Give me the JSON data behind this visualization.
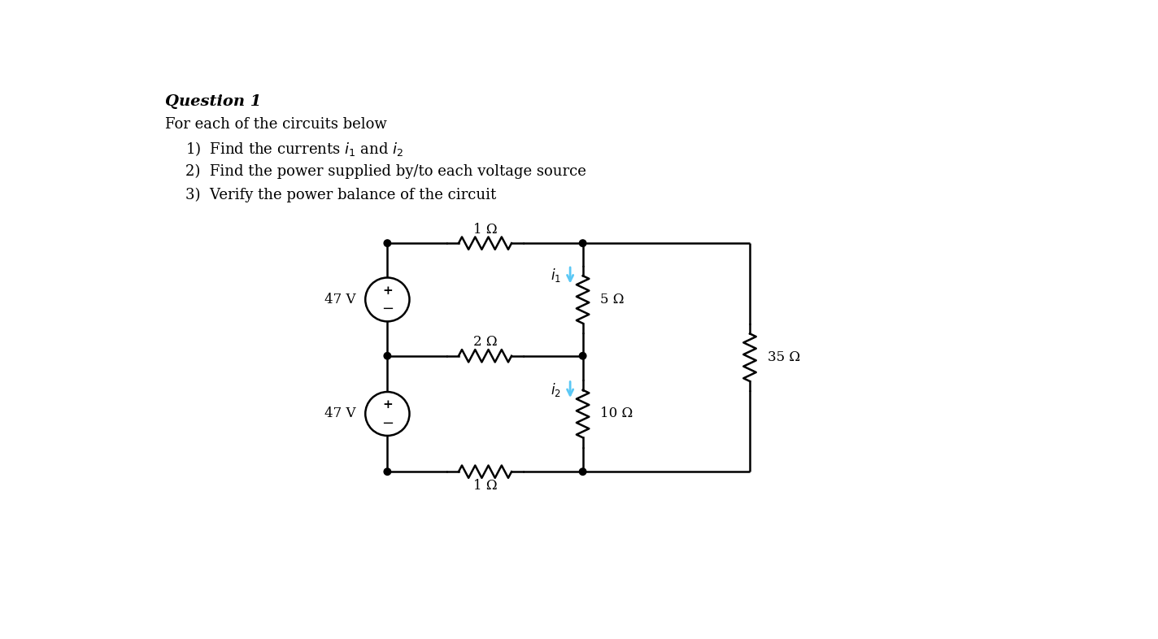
{
  "title": "Question 1",
  "subtitle": "For each of the circuits below",
  "items": [
    "1)  Find the currents $i_1$ and $i_2$",
    "2)  Find the power supplied by/to each voltage source",
    "3)  Verify the power balance of the circuit"
  ],
  "bg_color": "#ffffff",
  "text_color": "#000000",
  "line_color": "#000000",
  "arrow_color": "#5bc8f5",
  "node_color": "#000000",
  "v1": "47 V",
  "v2": "47 V",
  "r_top": "1 Ω",
  "r_mid": "2 Ω",
  "r_bot": "1 Ω",
  "r_5": "5 Ω",
  "r_10": "10 Ω",
  "r_35": "35 Ω",
  "i1_label": "$i_1$",
  "i2_label": "$i_2$",
  "title_fontsize": 14,
  "subtitle_fontsize": 13,
  "item_fontsize": 13,
  "circuit_fontsize": 12
}
